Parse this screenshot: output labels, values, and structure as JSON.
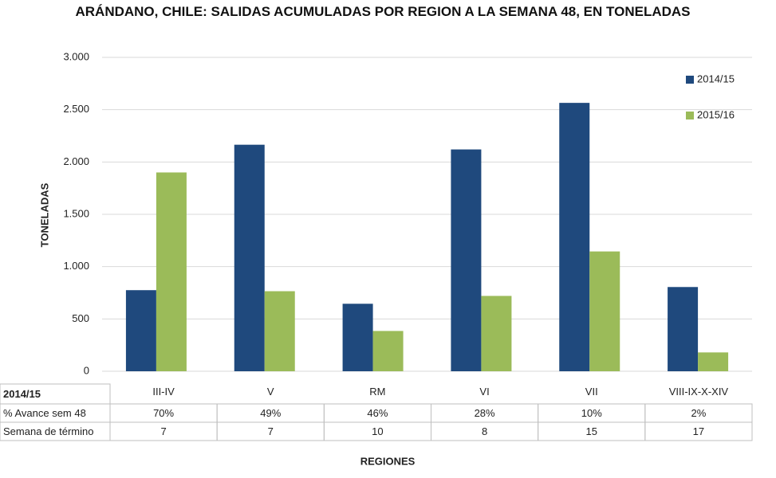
{
  "chart_data": {
    "type": "bar",
    "title": "ARÁNDANO, CHILE: SALIDAS ACUMULADAS POR REGION A LA SEMANA 48, EN TONELADAS",
    "y_label": "TONELADAS",
    "x_label": "REGIONES",
    "categories": [
      "III-IV",
      "V",
      "RM",
      "VI",
      "VII",
      "VIII-IX-X-XIV"
    ],
    "series": [
      {
        "name": "2014/15",
        "color": "#1f497d",
        "values": [
          775,
          2165,
          645,
          2120,
          2565,
          805
        ]
      },
      {
        "name": "2015/16",
        "color": "#9bbb59",
        "values": [
          1900,
          765,
          385,
          720,
          1145,
          180
        ]
      }
    ],
    "ylim": [
      0,
      3000
    ],
    "yticks": [
      0,
      500,
      {
        "value": 1000,
        "label": "1.000"
      },
      {
        "value": 1500,
        "label": "1.500"
      },
      {
        "value": 2000,
        "label": "2.000"
      },
      {
        "value": 2500,
        "label": "2.500"
      },
      {
        "value": 3000,
        "label": "3.000"
      }
    ],
    "grid": true,
    "legend": "upper right",
    "data_table": {
      "header": "2014/15",
      "rows": [
        {
          "label": "% Avance sem 48",
          "values": [
            "70%",
            "49%",
            "46%",
            "28%",
            "10%",
            "2%"
          ]
        },
        {
          "label": "Semana de término",
          "values": [
            7,
            7,
            10,
            8,
            15,
            17
          ]
        }
      ]
    }
  }
}
